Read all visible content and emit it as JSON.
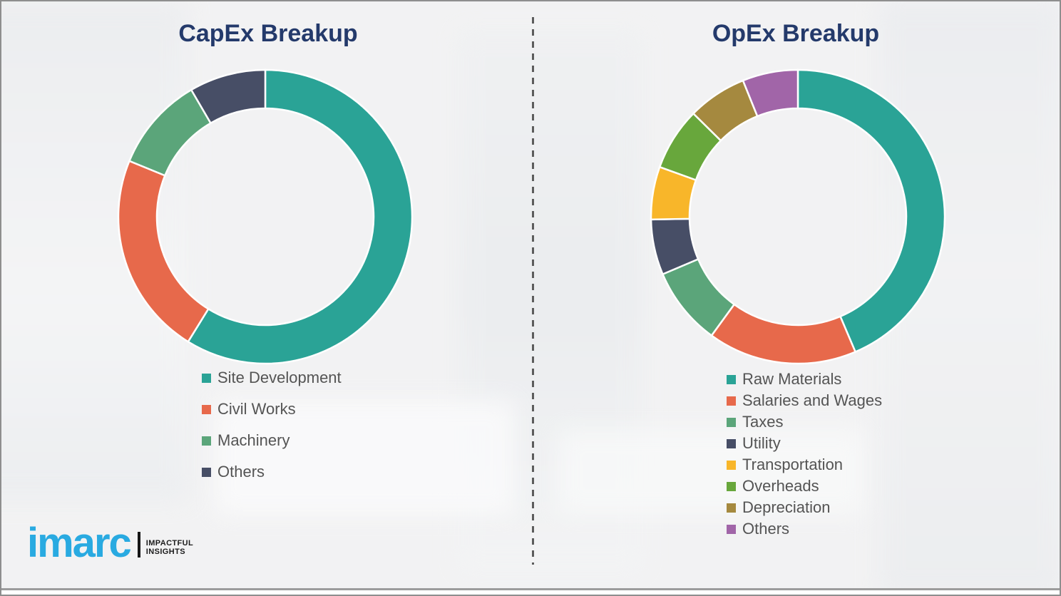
{
  "chart_data": [
    {
      "type": "pie",
      "variant": "donut",
      "title": "CapEx Breakup",
      "labels": [
        "Site Development",
        "Civil Works",
        "Machinery",
        "Others"
      ],
      "values": [
        58.8,
        22.4,
        10.4,
        8.4
      ],
      "values_note_unit": "percent_estimated_from_arc_angles",
      "colors": [
        "#2aa396",
        "#e7694b",
        "#5ba57a",
        "#474e66"
      ],
      "start_angle_deg": 0,
      "direction": "clockwise",
      "inner_radius_ratio": 0.74,
      "legend_position": "below-chart-left",
      "data_labels_shown": false
    },
    {
      "type": "pie",
      "variant": "donut",
      "title": "OpEx Breakup",
      "labels": [
        "Raw Materials",
        "Salaries and Wages",
        "Taxes",
        "Utility",
        "Transportation",
        "Overheads",
        "Depreciation",
        "Others"
      ],
      "values": [
        43.6,
        16.4,
        8.6,
        6.1,
        5.8,
        6.9,
        6.5,
        6.1
      ],
      "values_note_unit": "percent_estimated_from_arc_angles",
      "colors": [
        "#2aa396",
        "#e7694b",
        "#5ba57a",
        "#474e66",
        "#f8b62a",
        "#68a73c",
        "#a5893f",
        "#a165a8"
      ],
      "start_angle_deg": 0,
      "direction": "clockwise",
      "inner_radius_ratio": 0.74,
      "legend_position": "below-chart-left",
      "data_labels_shown": false
    }
  ],
  "logo": {
    "brand": "imarc",
    "tagline_line1": "IMPACTFUL",
    "tagline_line2": "INSIGHTS",
    "brand_color": "#29aae1",
    "bar_color": "#161616"
  },
  "theme": {
    "title_color": "#243a6b",
    "legend_text_color": "#545454",
    "canvas_background": "#f2f2f3",
    "divider_color": "#5c5c5c",
    "segment_gap_color": "#ffffff"
  }
}
